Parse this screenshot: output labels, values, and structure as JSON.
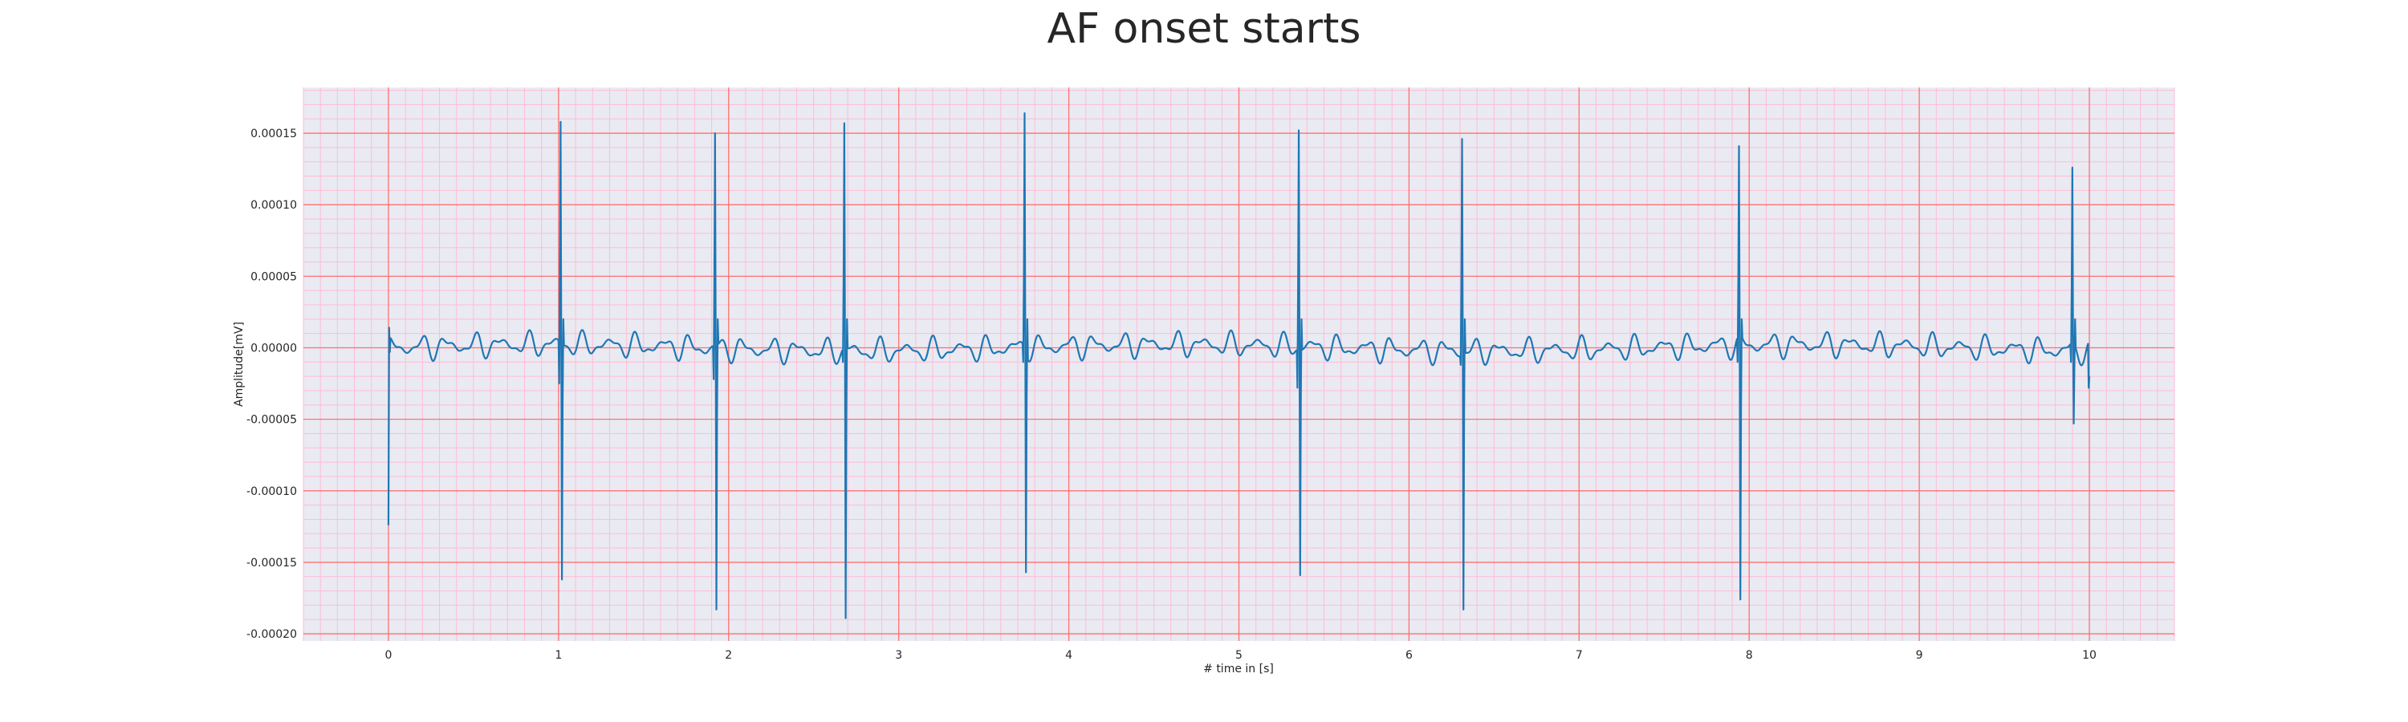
{
  "chart_data": {
    "type": "line",
    "title": "AF onset starts",
    "xlabel": "# time in [s]",
    "ylabel": "Amplitude[mV]",
    "xlim": [
      -0.5,
      10.5
    ],
    "ylim": [
      -0.000205,
      0.000182
    ],
    "x_ticks": [
      0,
      1,
      2,
      3,
      4,
      5,
      6,
      7,
      8,
      9,
      10
    ],
    "x_tick_labels": [
      "0",
      "1",
      "2",
      "3",
      "4",
      "5",
      "6",
      "7",
      "8",
      "9",
      "10"
    ],
    "y_ticks": [
      0.00015,
      0.0001,
      5e-05,
      0.0,
      -5e-05,
      -0.0001,
      -0.00015,
      -0.0002
    ],
    "y_tick_labels": [
      "0.00015",
      "0.00010",
      "0.00005",
      "0.00000",
      "-0.00005",
      "-0.00010",
      "-0.00015",
      "-0.00020"
    ],
    "grid": {
      "major": true,
      "minor": true,
      "major_color": "#ff7070",
      "minor_color": "#ffbcd4",
      "background": "#eaeaf2"
    },
    "line_color": "#1f77b4",
    "sampling_rate_hz": 250,
    "duration_s": 10,
    "beats": [
      {
        "t": 1.01,
        "q": -2.5e-05,
        "r": 0.000158,
        "s": -0.000162
      },
      {
        "t": 1.92,
        "q": -2.2e-05,
        "r": 0.00015,
        "s": -0.000183
      },
      {
        "t": 2.68,
        "q": -1e-05,
        "r": 0.000157,
        "s": -0.000189
      },
      {
        "t": 3.74,
        "q": -1e-05,
        "r": 0.000164,
        "s": -0.000157
      },
      {
        "t": 5.35,
        "q": -2.8e-05,
        "r": 0.000152,
        "s": -0.000159
      },
      {
        "t": 6.31,
        "q": -1.2e-05,
        "r": 0.000146,
        "s": -0.000183
      },
      {
        "t": 7.94,
        "q": -1e-05,
        "r": 0.000141,
        "s": -0.000176
      },
      {
        "t": 9.9,
        "q": -1e-05,
        "r": 0.000126,
        "s": -5.3e-05
      }
    ],
    "start_value": -0.000124,
    "end_value": -2e-05,
    "baseline_noise_amplitude": 9e-06
  }
}
